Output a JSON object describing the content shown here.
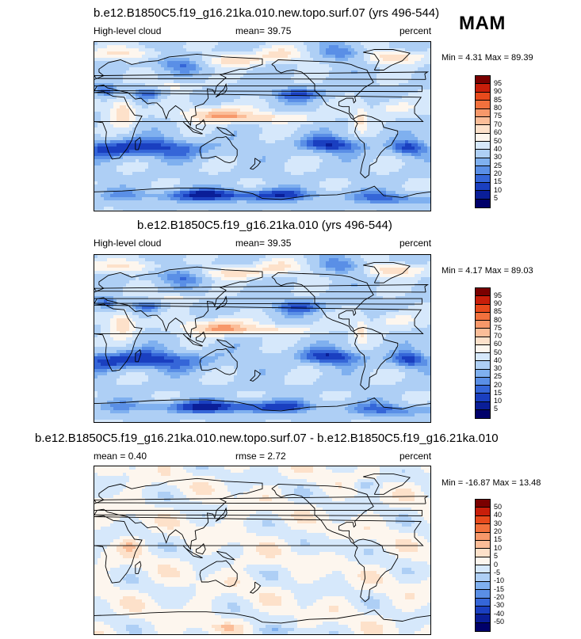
{
  "season": "MAM",
  "chart_data": [
    {
      "type": "heatmap",
      "title": "b.e12.B1850C5.f19_g16.21ka.010.new.topo.surf.07 (yrs 496-544)",
      "left_label": "High-level cloud",
      "center_label": "mean=  39.75",
      "right_label": "percent",
      "mean": 39.75,
      "min": 4.31,
      "max": 89.39,
      "minmax_text": "Min =   4.31 Max =  89.39",
      "levels": [
        "95",
        "90",
        "85",
        "80",
        "75",
        "70",
        "60",
        "50",
        "40",
        "30",
        "25",
        "20",
        "15",
        "10",
        "5"
      ],
      "colors": [
        "#7a0000",
        "#c81e0a",
        "#e84a1c",
        "#f2713d",
        "#f7986a",
        "#fbbd98",
        "#fde1ca",
        "#fdf6ee",
        "#d6e8fb",
        "#aecff5",
        "#7fb0ef",
        "#5a8fe6",
        "#3566d8",
        "#1a3fc0",
        "#0a1e98",
        "#00006a"
      ],
      "pattern": "base"
    },
    {
      "type": "heatmap",
      "title": "b.e12.B1850C5.f19_g16.21ka.010 (yrs 496-544)",
      "left_label": "High-level cloud",
      "center_label": "mean=  39.35",
      "right_label": "percent",
      "mean": 39.35,
      "min": 4.17,
      "max": 89.03,
      "minmax_text": "Min =   4.17 Max =  89.03",
      "levels": [
        "95",
        "90",
        "85",
        "80",
        "75",
        "70",
        "60",
        "50",
        "40",
        "30",
        "25",
        "20",
        "15",
        "10",
        "5"
      ],
      "colors": [
        "#7a0000",
        "#c81e0a",
        "#e84a1c",
        "#f2713d",
        "#f7986a",
        "#fbbd98",
        "#fde1ca",
        "#fdf6ee",
        "#d6e8fb",
        "#aecff5",
        "#7fb0ef",
        "#5a8fe6",
        "#3566d8",
        "#1a3fc0",
        "#0a1e98",
        "#00006a"
      ],
      "pattern": "base"
    },
    {
      "type": "heatmap",
      "title": "b.e12.B1850C5.f19_g16.21ka.010.new.topo.surf.07 - b.e12.B1850C5.f19_g16.21ka.010",
      "left_label": "mean =   0.40",
      "center_label": "rmse =   2.72",
      "right_label": "percent",
      "mean": 0.4,
      "rmse": 2.72,
      "min": -16.87,
      "max": 13.48,
      "minmax_text": "Min = -16.87 Max =  13.48",
      "levels": [
        "50",
        "40",
        "30",
        "20",
        "15",
        "10",
        "5",
        "0",
        "-5",
        "-10",
        "-15",
        "-20",
        "-30",
        "-40",
        "-50"
      ],
      "colors": [
        "#7a0000",
        "#c81e0a",
        "#e84a1c",
        "#f2713d",
        "#f7986a",
        "#fbbd98",
        "#fde1ca",
        "#fdf6ee",
        "#d6e8fb",
        "#aecff5",
        "#7fb0ef",
        "#5a8fe6",
        "#3566d8",
        "#1a3fc0",
        "#0a1e98",
        "#00006a"
      ],
      "pattern": "diff"
    }
  ]
}
